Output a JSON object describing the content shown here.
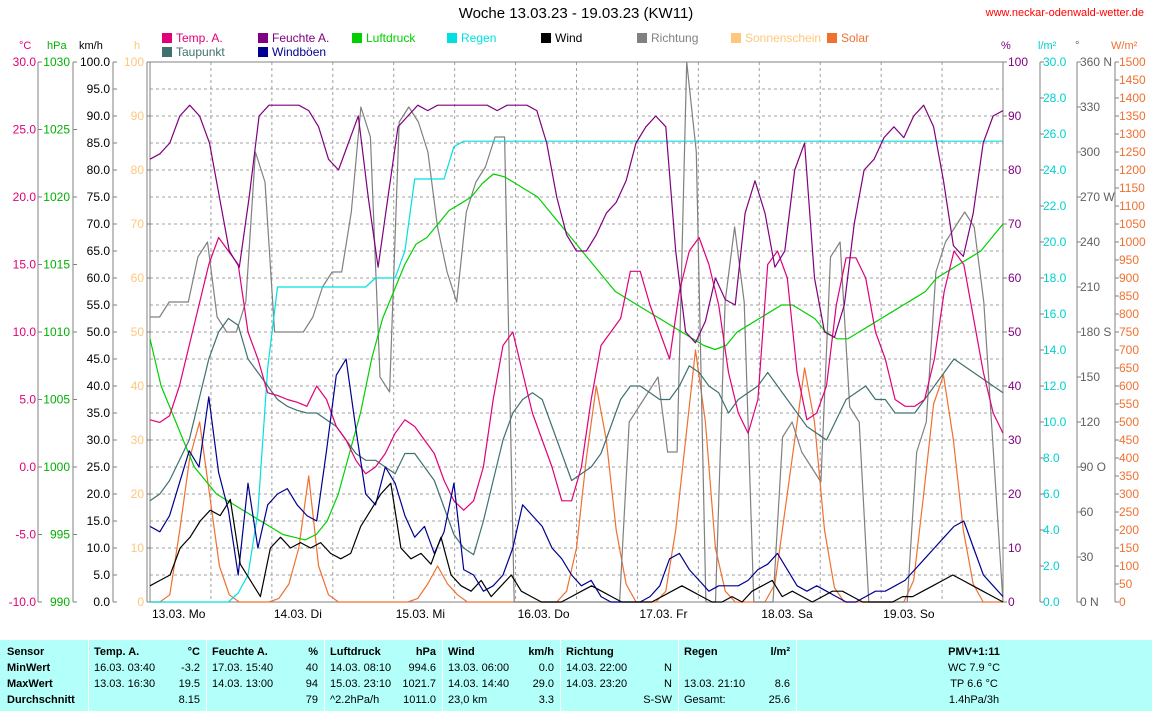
{
  "title": "Woche 13.03.23 - 19.03.23 (KW11)",
  "site": "www.neckar-odenwald-wetter.de",
  "legend": [
    {
      "label": "Temp. A.",
      "color": "#e0007a"
    },
    {
      "label": "Feuchte A.",
      "color": "#800080"
    },
    {
      "label": "Luftdruck",
      "color": "#00d000"
    },
    {
      "label": "Regen",
      "color": "#00e0e0"
    },
    {
      "label": "Wind",
      "color": "#000000"
    },
    {
      "label": "Richtung",
      "color": "#808080"
    },
    {
      "label": "Sonnenschein",
      "color": "#ffc77a"
    },
    {
      "label": "Solar",
      "color": "#f07030"
    },
    {
      "label": "Taupunkt",
      "color": "#407070"
    },
    {
      "label": "Windböen",
      "color": "#000090"
    }
  ],
  "units": {
    "temp": "°C",
    "press": "hPa",
    "wind": "km/h",
    "sun": "h",
    "hum": "%",
    "rain": "l/m²",
    "dir": "°",
    "solar": "W/m²"
  },
  "chart_data": {
    "type": "line",
    "x_labels": [
      "13.03. Mo",
      "14.03. Di",
      "15.03. Mi",
      "16.03. Do",
      "17.03. Fr",
      "18.03. Sa",
      "19.03. So"
    ],
    "axes": {
      "temp": {
        "min": -10,
        "max": 30,
        "ticks": [
          "30.0",
          "25.0",
          "20.0",
          "15.0",
          "10.0",
          "5.0",
          "0.0",
          "-5.0",
          "-10.0"
        ],
        "color": "#e0007a"
      },
      "press": {
        "min": 990,
        "max": 1030,
        "ticks": [
          "1030",
          "1025",
          "1020",
          "1015",
          "1010",
          "1005",
          "1000",
          "995",
          "990"
        ],
        "color": "#00b000"
      },
      "wind": {
        "min": 0,
        "max": 100,
        "ticks": [
          "100.0",
          "95.0",
          "90.0",
          "85.0",
          "80.0",
          "75.0",
          "70.0",
          "65.0",
          "60.0",
          "55.0",
          "50.0",
          "45.0",
          "40.0",
          "35.0",
          "30.0",
          "25.0",
          "20.0",
          "15.0",
          "10.0",
          "5.0",
          "0.0"
        ],
        "color": "#000000"
      },
      "sun": {
        "min": 0,
        "max": 100,
        "ticks": [
          "100",
          "90",
          "80",
          "70",
          "60",
          "50",
          "40",
          "30",
          "20",
          "10",
          "0"
        ],
        "color": "#ffc77a"
      },
      "hum": {
        "min": 0,
        "max": 100,
        "ticks": [
          "100",
          "90",
          "80",
          "70",
          "60",
          "50",
          "40",
          "30",
          "20",
          "10",
          "0"
        ],
        "color": "#800080"
      },
      "rain": {
        "min": 0,
        "max": 30,
        "ticks": [
          "30.0",
          "28.0",
          "26.0",
          "24.0",
          "22.0",
          "20.0",
          "18.0",
          "16.0",
          "14.0",
          "12.0",
          "10.0",
          "8.0",
          "6.0",
          "4.0",
          "2.0",
          "0.0"
        ],
        "color": "#00d0d0"
      },
      "dir": {
        "min": 0,
        "max": 360,
        "ticks": [
          "360 N",
          "330",
          "300",
          "270 W",
          "240",
          "210",
          "180 S",
          "150",
          "120",
          "90 O",
          "60",
          "30",
          "0 N"
        ],
        "color": "#606060"
      },
      "solar": {
        "min": 0,
        "max": 1500,
        "ticks": [
          "1500",
          "1450",
          "1400",
          "1350",
          "1300",
          "1250",
          "1200",
          "1150",
          "1100",
          "1050",
          "1000",
          "950",
          "900",
          "850",
          "800",
          "750",
          "700",
          "650",
          "600",
          "550",
          "500",
          "450",
          "400",
          "350",
          "300",
          "250",
          "200",
          "150",
          "100",
          "50",
          "0"
        ],
        "color": "#f07030"
      }
    },
    "series": [
      {
        "name": "Temp. A.",
        "axis": "temp",
        "color": "#e0007a",
        "values": [
          3.5,
          3.3,
          3.8,
          6,
          9,
          12,
          15,
          17,
          16,
          15,
          10,
          8,
          5.5,
          5.3,
          5,
          4.8,
          4.5,
          6,
          5,
          3,
          2,
          0.5,
          -0.5,
          0,
          1,
          2.5,
          3.5,
          3,
          2,
          1,
          -1,
          -2.5,
          -3.2,
          -2.5,
          0,
          5,
          9,
          10,
          7,
          4,
          2,
          0,
          -2.5,
          -2.5,
          0,
          5,
          9,
          10,
          11,
          14.5,
          14.5,
          12,
          10,
          8,
          13,
          16,
          17,
          15,
          12,
          7,
          4,
          2.5,
          5,
          15,
          16,
          14,
          7,
          3.5,
          4,
          6,
          12,
          15.5,
          15.5,
          14,
          10,
          8,
          5,
          4.5,
          4.5,
          5,
          8,
          13,
          16,
          15,
          11,
          7,
          4,
          2.5
        ]
      },
      {
        "name": "Taupunkt",
        "axis": "temp",
        "color": "#407070",
        "values": [
          -2.5,
          -2,
          -1,
          0.5,
          2,
          5,
          8,
          10,
          11,
          10.5,
          8,
          7,
          6,
          5,
          4.5,
          4.2,
          4,
          4,
          3.5,
          3,
          2,
          1,
          0.5,
          0.5,
          0,
          -0.5,
          1,
          1,
          0,
          -1,
          -3,
          -5,
          -6,
          -6.5,
          -4,
          -1,
          2,
          4,
          5,
          5.5,
          5,
          3,
          1,
          -1,
          -0.5,
          0,
          1,
          3,
          5,
          6,
          6,
          5.5,
          5,
          5,
          6,
          7.5,
          7,
          6,
          5.5,
          4,
          5,
          5.5,
          6,
          7,
          6,
          5,
          4,
          3,
          2.5,
          2,
          3.5,
          5,
          5.5,
          6,
          5,
          5,
          4,
          4,
          4,
          5,
          6,
          7,
          8,
          7.5,
          7,
          6.5,
          6,
          5.5
        ]
      },
      {
        "name": "Feuchte A.",
        "axis": "hum",
        "color": "#800080",
        "values": [
          82,
          83,
          85,
          90,
          92,
          90,
          85,
          75,
          65,
          62,
          75,
          90,
          92,
          92,
          92,
          92,
          91,
          88,
          82,
          80,
          85,
          90,
          75,
          62,
          75,
          88,
          90,
          92,
          91,
          92,
          92,
          92,
          92,
          92,
          92,
          91,
          92,
          92,
          92,
          91,
          85,
          75,
          68,
          65,
          65,
          68,
          72,
          74,
          78,
          85,
          88,
          90,
          88,
          65,
          50,
          48,
          52,
          60,
          56,
          55,
          72,
          78,
          72,
          62,
          65,
          80,
          85,
          60,
          50,
          49,
          55,
          70,
          80,
          82,
          86,
          88,
          86,
          90,
          92,
          88,
          78,
          66,
          64,
          72,
          85,
          90,
          91
        ]
      },
      {
        "name": "Luftdruck",
        "axis": "press",
        "color": "#00d000",
        "values": [
          1009.5,
          1006,
          1004,
          1002,
          1000,
          999,
          998,
          997.5,
          997,
          996.5,
          996,
          995.5,
          995,
          994.8,
          994.6,
          995,
          996,
          998,
          1001,
          1004,
          1008,
          1011,
          1013,
          1015,
          1016.5,
          1017,
          1018,
          1019,
          1019.5,
          1020,
          1021,
          1021.7,
          1021.5,
          1021,
          1020.5,
          1020,
          1019,
          1018,
          1017,
          1016,
          1015,
          1014,
          1013,
          1012.5,
          1012,
          1011.5,
          1011,
          1010.5,
          1010,
          1009.5,
          1009,
          1008.7,
          1009,
          1010,
          1010.5,
          1011,
          1011.5,
          1012,
          1012,
          1011.5,
          1011,
          1010,
          1009.5,
          1009.5,
          1010,
          1010.5,
          1011,
          1011.5,
          1012,
          1012.5,
          1013,
          1014,
          1014.5,
          1015,
          1015.5,
          1016,
          1017,
          1018
        ]
      },
      {
        "name": "Regen",
        "axis": "rain",
        "color": "#00e0e0",
        "values": [
          0,
          0,
          0,
          0,
          0,
          0,
          0,
          0,
          0,
          0.5,
          1.5,
          5,
          13,
          17.5,
          17.5,
          17.5,
          17.5,
          17.5,
          17.5,
          17.5,
          17.5,
          17.5,
          17.5,
          18,
          18,
          18,
          19.5,
          23.5,
          23.5,
          23.5,
          23.5,
          25.3,
          25.6,
          25.6,
          25.6,
          25.6,
          25.6,
          25.6,
          25.6,
          25.6,
          25.6,
          25.6,
          25.6,
          25.6,
          25.6,
          25.6,
          25.6,
          25.6,
          25.6,
          25.6,
          25.6,
          25.6,
          25.6,
          25.6,
          25.6,
          25.6,
          25.6,
          25.6,
          25.6,
          25.6,
          25.6,
          25.6,
          25.6,
          25.6,
          25.6,
          25.6,
          25.6,
          25.6,
          25.6,
          25.6,
          25.6,
          25.6,
          25.6,
          25.6,
          25.6,
          25.6,
          25.6,
          25.6,
          25.6,
          25.6,
          25.6,
          25.6,
          25.6,
          25.6,
          25.6,
          25.6,
          25.6,
          25.6
        ]
      },
      {
        "name": "Wind",
        "axis": "wind",
        "color": "#000000",
        "values": [
          3,
          4,
          5,
          10,
          12,
          15,
          17,
          16,
          19,
          7,
          4,
          1,
          10,
          12,
          10,
          11,
          10,
          11,
          9,
          8,
          9,
          14,
          17,
          20,
          22,
          10,
          8,
          9,
          7,
          12,
          5,
          3,
          2,
          4,
          1,
          3,
          5,
          2,
          1,
          0,
          0,
          0,
          1,
          2,
          3,
          2,
          1,
          0,
          0,
          0,
          0,
          1,
          2,
          3,
          2,
          1,
          0,
          0,
          1,
          0,
          2,
          3,
          4,
          1,
          2,
          1,
          0,
          1,
          2,
          2,
          1,
          0,
          0,
          0,
          0,
          1,
          1,
          2,
          3,
          4,
          5,
          4,
          3,
          2,
          1,
          0
        ]
      },
      {
        "name": "Windböen",
        "axis": "wind",
        "color": "#000090",
        "values": [
          14,
          13,
          16,
          22,
          28,
          25,
          38,
          24,
          17,
          5,
          22,
          10,
          18,
          20,
          21,
          18,
          16,
          15,
          28,
          42,
          45,
          32,
          20,
          18,
          25,
          22,
          16,
          12,
          14,
          9,
          13,
          22,
          6,
          5,
          2,
          3,
          5,
          10,
          18,
          16,
          14,
          10,
          8,
          5,
          3,
          4,
          1,
          0,
          0,
          0,
          0,
          1,
          3,
          8,
          9,
          6,
          4,
          2,
          3,
          3,
          3,
          4,
          6,
          7,
          9,
          6,
          3,
          2,
          3,
          2,
          1,
          0,
          0,
          1,
          2,
          2,
          3,
          4,
          6,
          8,
          10,
          12,
          14,
          15,
          10,
          5,
          3,
          1
        ]
      },
      {
        "name": "Richtung",
        "axis": "dir",
        "color": "#808080",
        "values": [
          190,
          190,
          200,
          200,
          200,
          230,
          240,
          190,
          180,
          180,
          200,
          300,
          280,
          180,
          180,
          180,
          180,
          190,
          210,
          220,
          220,
          260,
          330,
          310,
          150,
          140,
          320,
          330,
          320,
          300,
          250,
          220,
          200,
          260,
          280,
          290,
          310,
          310,
          0,
          0,
          0,
          0,
          0,
          0,
          0,
          0,
          0,
          0,
          0,
          0,
          120,
          130,
          140,
          150,
          100,
          100,
          360,
          300,
          0,
          0,
          200,
          250,
          200,
          0,
          0,
          0,
          110,
          120,
          100,
          90,
          80,
          230,
          240,
          130,
          120,
          0,
          0,
          0,
          0,
          0,
          100,
          120,
          220,
          240,
          250,
          260,
          250,
          200,
          100,
          0
        ]
      },
      {
        "name": "Solar",
        "axis": "solar",
        "color": "#f07030",
        "values": [
          0,
          0,
          20,
          200,
          400,
          500,
          300,
          100,
          20,
          0,
          0,
          0,
          0,
          10,
          50,
          150,
          350,
          100,
          20,
          0,
          0,
          0,
          0,
          0,
          0,
          0,
          0,
          10,
          50,
          100,
          50,
          20,
          0,
          0,
          0,
          0,
          0,
          0,
          0,
          0,
          0,
          0,
          30,
          150,
          400,
          600,
          450,
          200,
          50,
          0,
          0,
          0,
          30,
          200,
          450,
          700,
          500,
          150,
          30,
          0,
          0,
          0,
          0,
          50,
          250,
          450,
          650,
          500,
          200,
          40,
          0,
          0,
          0,
          0,
          0,
          0,
          0,
          60,
          300,
          550,
          630,
          450,
          200,
          50,
          0,
          0,
          0
        ]
      }
    ]
  },
  "table": {
    "headers": {
      "sensor": "Sensor",
      "temp": "Temp. A.",
      "temp_u": "°C",
      "hum": "Feuchte A.",
      "hum_u": "%",
      "press": "Luftdruck",
      "press_u": "hPa",
      "wind": "Wind",
      "wind_u": "km/h",
      "dir": "Richtung",
      "rain": "Regen",
      "rain_u": "l/m²",
      "pmv": "PMV+1:11"
    },
    "rows": [
      {
        "label": "MinWert",
        "temp_time": "16.03.  03:40",
        "temp_val": "-3.2",
        "hum_time": "17.03.  15:40",
        "hum_val": "40",
        "press_time": "14.03.  08:10",
        "press_val": "994.6",
        "wind_time": "13.03.  06:00",
        "wind_val": "0.0",
        "dir_time": "14.03.  22:00",
        "dir_val": "N",
        "rain_time": "",
        "rain_val": "",
        "pmv": "WC 7.9 °C"
      },
      {
        "label": "MaxWert",
        "temp_time": "13.03.  16:30",
        "temp_val": "19.5",
        "hum_time": "14.03.  13:00",
        "hum_val": "94",
        "press_time": "15.03.  23:10",
        "press_val": "1021.7",
        "wind_time": "14.03.  14:40",
        "wind_val": "29.0",
        "dir_time": "14.03.  23:20",
        "dir_val": "N",
        "rain_time": "13.03.  21:10",
        "rain_val": "8.6",
        "pmv": "TP 6.6 °C"
      },
      {
        "label": "Durchschnitt",
        "temp_time": "",
        "temp_val": "8.15",
        "hum_time": "",
        "hum_val": "79",
        "press_time": "^2.2hPa/h",
        "press_val": "1011.0",
        "wind_time": "23,0 km",
        "wind_val": "3.3",
        "dir_time": "",
        "dir_val": "S-SW",
        "rain_time": "Gesamt:",
        "rain_val": "25.6",
        "pmv": "1.4hPa/3h"
      }
    ]
  }
}
